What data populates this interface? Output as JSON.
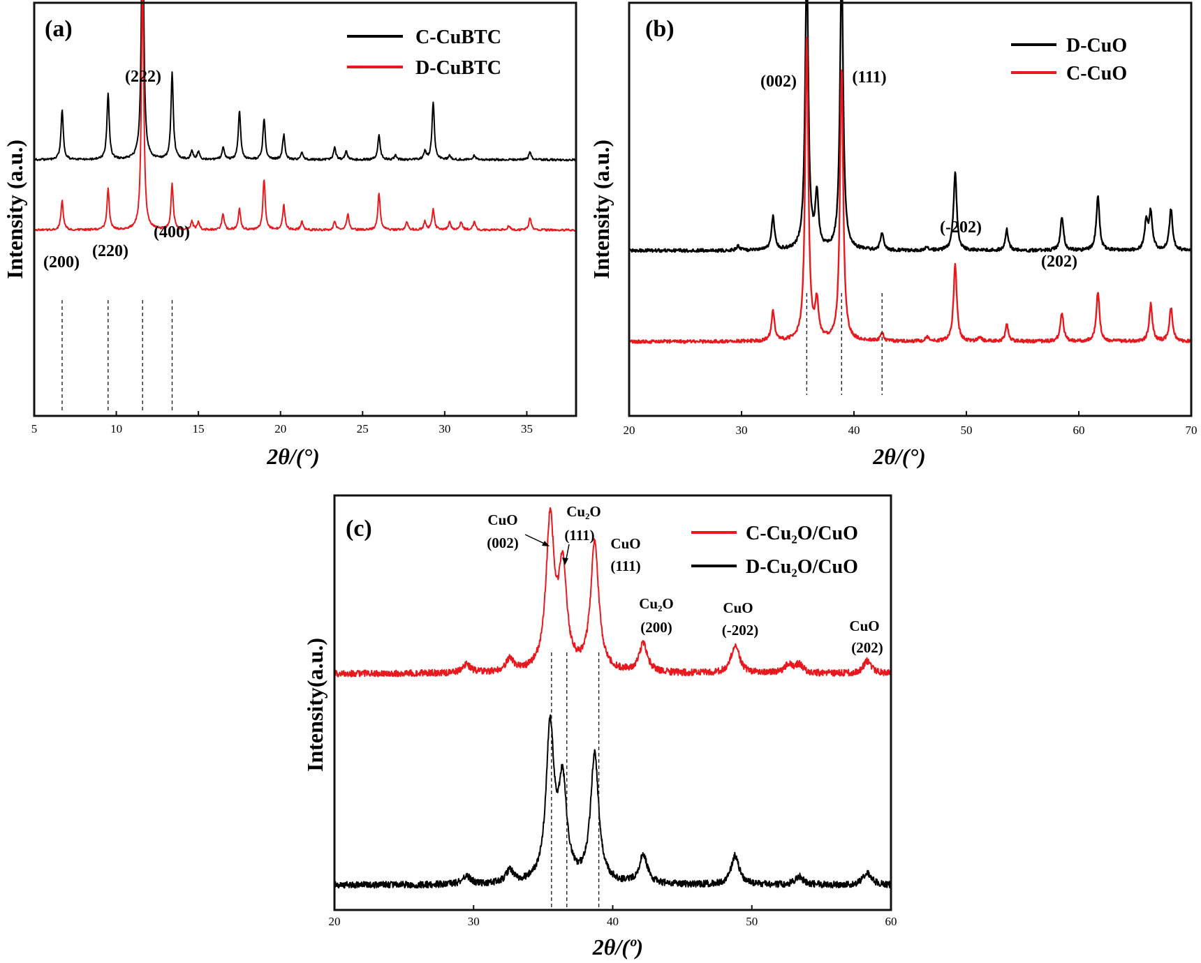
{
  "chart_data": [
    {
      "type": "line",
      "panel_label": "(a)",
      "xlabel": "2θ/(°)",
      "ylabel": "Intensity (a.u.)",
      "xlim": [
        5,
        38
      ],
      "xticks": [
        5,
        10,
        15,
        20,
        25,
        30,
        35
      ],
      "legend_position": "top-right",
      "grid": false,
      "series": [
        {
          "name": "C-CuBTC",
          "color": "#000000",
          "offset": 0.62,
          "peaks": [
            [
              6.7,
              0.12
            ],
            [
              9.5,
              0.16
            ],
            [
              11.6,
              0.66
            ],
            [
              13.4,
              0.21
            ],
            [
              14.6,
              0.02
            ],
            [
              15.0,
              0.02
            ],
            [
              16.5,
              0.03
            ],
            [
              17.5,
              0.12
            ],
            [
              19.0,
              0.1
            ],
            [
              20.2,
              0.06
            ],
            [
              21.3,
              0.02
            ],
            [
              23.3,
              0.03
            ],
            [
              24.0,
              0.02
            ],
            [
              26.0,
              0.06
            ],
            [
              27.0,
              0.01
            ],
            [
              28.8,
              0.02
            ],
            [
              29.3,
              0.14
            ],
            [
              30.3,
              0.01
            ],
            [
              31.8,
              0.01
            ],
            [
              35.2,
              0.02
            ]
          ]
        },
        {
          "name": "D-CuBTC",
          "color": "#e8191e",
          "offset": 0.45,
          "peaks": [
            [
              6.7,
              0.07
            ],
            [
              9.5,
              0.1
            ],
            [
              11.6,
              0.62
            ],
            [
              13.4,
              0.11
            ],
            [
              14.6,
              0.02
            ],
            [
              15.0,
              0.02
            ],
            [
              16.5,
              0.04
            ],
            [
              17.5,
              0.05
            ],
            [
              19.0,
              0.12
            ],
            [
              20.2,
              0.06
            ],
            [
              21.3,
              0.02
            ],
            [
              23.3,
              0.02
            ],
            [
              24.1,
              0.04
            ],
            [
              26.0,
              0.09
            ],
            [
              27.7,
              0.02
            ],
            [
              28.8,
              0.02
            ],
            [
              29.3,
              0.05
            ],
            [
              30.3,
              0.02
            ],
            [
              31.0,
              0.02
            ],
            [
              31.8,
              0.02
            ],
            [
              33.9,
              0.01
            ],
            [
              35.2,
              0.03
            ]
          ]
        }
      ],
      "reference_lines": [
        6.7,
        9.5,
        11.6,
        13.4
      ],
      "annotations": [
        {
          "text": "(200)",
          "x": 6.7
        },
        {
          "text": "(220)",
          "x": 9.5
        },
        {
          "text": "(222)",
          "x": 11.6
        },
        {
          "text": "(400)",
          "x": 13.4
        }
      ]
    },
    {
      "type": "line",
      "panel_label": "(b)",
      "xlabel": "2θ/(°)",
      "ylabel": "Intensity (a.u.)",
      "xlim": [
        20,
        70
      ],
      "xticks": [
        20,
        30,
        40,
        50,
        60,
        70
      ],
      "legend_position": "top-right",
      "grid": false,
      "series": [
        {
          "name": "D-CuO",
          "color": "#000000",
          "offset": 0.4,
          "peaks": [
            [
              29.7,
              0.01
            ],
            [
              32.8,
              0.08
            ],
            [
              35.8,
              0.69
            ],
            [
              36.7,
              0.13
            ],
            [
              38.9,
              0.69
            ],
            [
              42.5,
              0.04
            ],
            [
              46.5,
              0.01
            ],
            [
              49.0,
              0.19
            ],
            [
              53.6,
              0.05
            ],
            [
              58.5,
              0.08
            ],
            [
              61.7,
              0.13
            ],
            [
              66.0,
              0.07
            ],
            [
              66.4,
              0.09
            ],
            [
              68.2,
              0.1
            ]
          ]
        },
        {
          "name": "C-CuO",
          "color": "#e8191e",
          "offset": 0.18,
          "peaks": [
            [
              32.8,
              0.07
            ],
            [
              35.8,
              0.73
            ],
            [
              36.7,
              0.09
            ],
            [
              38.9,
              0.66
            ],
            [
              42.5,
              0.02
            ],
            [
              46.5,
              0.01
            ],
            [
              49.0,
              0.19
            ],
            [
              51.2,
              0.01
            ],
            [
              53.6,
              0.04
            ],
            [
              58.5,
              0.07
            ],
            [
              61.7,
              0.12
            ],
            [
              66.4,
              0.09
            ],
            [
              68.2,
              0.08
            ]
          ]
        }
      ],
      "reference_lines": [
        35.8,
        38.9,
        42.5
      ],
      "annotations": [
        {
          "text": "(002)",
          "x": 35.8
        },
        {
          "text": "(111)",
          "x": 38.9
        },
        {
          "text": "(-202)",
          "x": 49.0
        },
        {
          "text": "(202)",
          "x": 58.5
        }
      ]
    },
    {
      "type": "line",
      "panel_label": "(c)",
      "xlabel": "2θ/(º)",
      "ylabel": "Intensity(a.u.)",
      "xlim": [
        20,
        60
      ],
      "xticks": [
        20,
        30,
        40,
        50,
        60
      ],
      "legend_position": "top-right",
      "grid": false,
      "series": [
        {
          "name": "C-Cu₂O/CuO",
          "color": "#e8191e",
          "offset": 0.57,
          "peaks": [
            [
              29.5,
              0.02
            ],
            [
              32.6,
              0.03
            ],
            [
              35.5,
              0.36
            ],
            [
              36.4,
              0.24
            ],
            [
              38.7,
              0.31
            ],
            [
              42.2,
              0.07
            ],
            [
              48.8,
              0.07
            ],
            [
              52.6,
              0.02
            ],
            [
              53.4,
              0.02
            ],
            [
              58.3,
              0.03
            ]
          ]
        },
        {
          "name": "D-Cu₂O/CuO",
          "color": "#000000",
          "offset": 0.06,
          "peaks": [
            [
              29.5,
              0.02
            ],
            [
              32.6,
              0.03
            ],
            [
              35.5,
              0.37
            ],
            [
              36.4,
              0.23
            ],
            [
              38.7,
              0.31
            ],
            [
              42.2,
              0.07
            ],
            [
              48.8,
              0.07
            ],
            [
              53.4,
              0.02
            ],
            [
              58.3,
              0.03
            ]
          ]
        }
      ],
      "reference_lines": [
        35.6,
        36.7,
        39.0
      ],
      "annotations": [
        {
          "line1": "CuO",
          "line2": "(002)",
          "x": 35.5
        },
        {
          "line1": "Cu₂O",
          "line2": "(111)",
          "x": 36.4
        },
        {
          "line1": "CuO",
          "line2": "(111)",
          "x": 38.7
        },
        {
          "line1": "Cu₂O",
          "line2": "(200)",
          "x": 42.2
        },
        {
          "line1": "CuO",
          "line2": "(-202)",
          "x": 48.8
        },
        {
          "line1": "CuO",
          "line2": "(202)",
          "x": 58.3
        }
      ]
    }
  ]
}
